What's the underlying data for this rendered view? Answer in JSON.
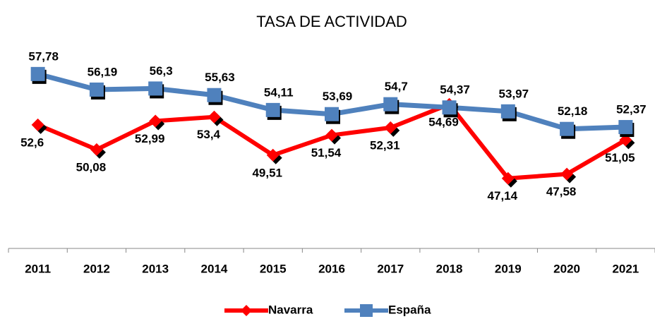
{
  "chart_data": {
    "type": "line",
    "title": "TASA DE ACTIVIDAD",
    "categories": [
      "2011",
      "2012",
      "2013",
      "2014",
      "2015",
      "2016",
      "2017",
      "2018",
      "2019",
      "2020",
      "2021"
    ],
    "series": [
      {
        "name": "Navarra",
        "color": "#ff0000",
        "values": [
          52.6,
          50.08,
          52.99,
          53.4,
          49.51,
          51.54,
          52.31,
          54.69,
          47.14,
          47.58,
          51.05
        ],
        "value_labels": [
          "52,6",
          "50,08",
          "52,99",
          "53,4",
          "49,51",
          "51,54",
          "52,31",
          "54,69",
          "47,14",
          "47,58",
          "51,05"
        ]
      },
      {
        "name": "España",
        "color": "#4f81bd",
        "values": [
          57.78,
          56.19,
          56.3,
          55.63,
          54.11,
          53.69,
          54.7,
          54.37,
          53.97,
          52.18,
          52.37
        ],
        "value_labels": [
          "57,78",
          "56,19",
          "56,3",
          "55,63",
          "54,11",
          "53,69",
          "54,7",
          "54,37",
          "53,97",
          "52,18",
          "52,37"
        ]
      }
    ],
    "ylim": [
      40,
      60
    ],
    "legend": "bottom"
  }
}
